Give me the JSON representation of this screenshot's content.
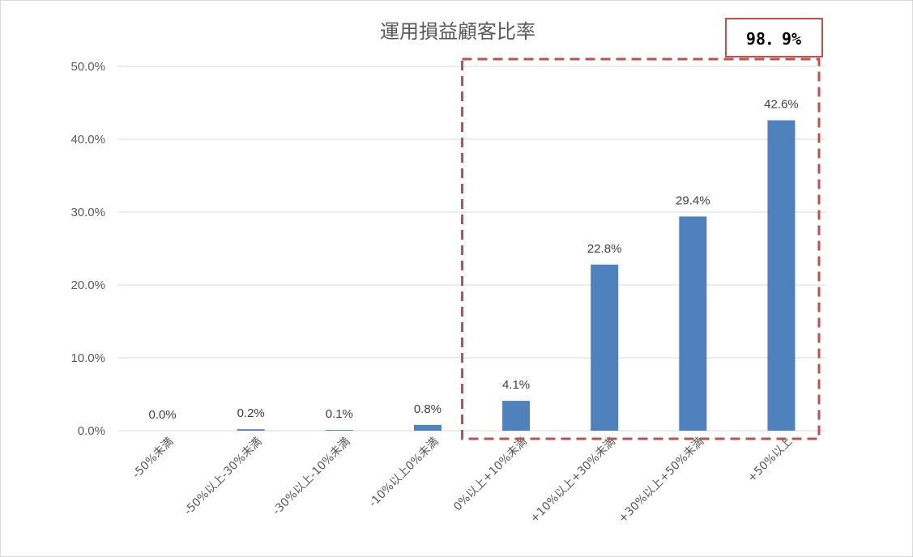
{
  "chart_data": {
    "type": "bar",
    "title": "運用損益顧客比率",
    "categories": [
      "-50%未満",
      "-50%以上-30%未満",
      "-30%以上-10%未満",
      "-10%以上0%未満",
      "0%以上+10%未満",
      "+10%以上+30%未満",
      "+30%以上+50%未満",
      "+50%以上"
    ],
    "values": [
      0.0,
      0.2,
      0.1,
      0.8,
      4.1,
      22.8,
      29.4,
      42.6
    ],
    "data_labels": [
      "0.0%",
      "0.2%",
      "0.1%",
      "0.8%",
      "4.1%",
      "22.8%",
      "29.4%",
      "42.6%"
    ],
    "ylim": [
      0,
      50
    ],
    "yticks": [
      0,
      10,
      20,
      30,
      40,
      50
    ],
    "ytick_labels": [
      "0.0%",
      "10.0%",
      "20.0%",
      "30.0%",
      "40.0%",
      "50.0%"
    ],
    "grid": true,
    "bar_color": "#4f81bd",
    "highlight": {
      "range": [
        "0%以上+10%未満",
        "+50%以上"
      ],
      "label": "98．9%",
      "color": "#c0504d"
    }
  }
}
